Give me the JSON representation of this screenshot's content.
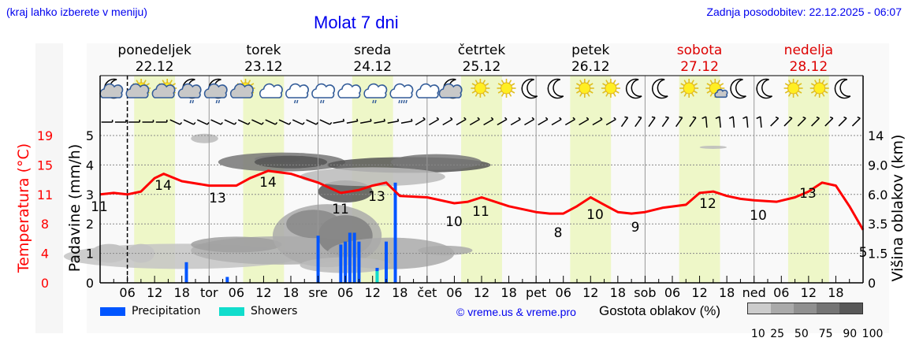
{
  "header": {
    "location_hint": "(kraj lahko izberete v meniju)",
    "title": "Molat 7 dni",
    "last_update": "Zadnja posodobitev: 22.12.2025 - 06:07"
  },
  "days": [
    {
      "name": "ponedeljek",
      "date": "22.12",
      "weekend": false
    },
    {
      "name": "torek",
      "date": "23.12",
      "weekend": false
    },
    {
      "name": "sreda",
      "date": "24.12",
      "weekend": false
    },
    {
      "name": "četrtek",
      "date": "25.12",
      "weekend": false
    },
    {
      "name": "petek",
      "date": "26.12",
      "weekend": false
    },
    {
      "name": "sobota",
      "date": "27.12",
      "weekend": true
    },
    {
      "name": "nedelja",
      "date": "28.12",
      "weekend": true
    }
  ],
  "x_ticks": [
    "06",
    "12",
    "18",
    "tor",
    "06",
    "12",
    "18",
    "sre",
    "06",
    "12",
    "18",
    "čet",
    "06",
    "12",
    "18",
    "pet",
    "06",
    "12",
    "18",
    "sob",
    "06",
    "12",
    "18",
    "ned",
    "06",
    "12",
    "18"
  ],
  "weather_icons": [
    "moon-cloud",
    "sun-cloud",
    "sun-cloud",
    "moon-cloud-rain",
    "moon-cloud-rain",
    "sun-cloud",
    "cloud",
    "cloud-rain",
    "cloud-rain",
    "cloud",
    "cloud-rain",
    "cloud-heavy-rain",
    "cloud",
    "moon-cloud",
    "sun",
    "sun",
    "moon",
    "moon",
    "sun",
    "sun",
    "moon",
    "moon",
    "sun",
    "sun-small-cloud",
    "moon",
    "moon",
    "sun",
    "sun",
    "moon"
  ],
  "axes": {
    "left_precip_label": "Padavine (mm/h)",
    "left_temp_label": "Temperatura (°C)",
    "right_label": "Višina oblakov (km)",
    "precip_ticks": [
      "0",
      "1",
      "2",
      "3",
      "4",
      "5"
    ],
    "temp_ticks": [
      "0",
      "4",
      "8",
      "11",
      "15",
      "19"
    ],
    "cloud_height_ticks": [
      "0",
      "1.5",
      "3.5",
      "6.0",
      "9.0",
      "14"
    ]
  },
  "legend": {
    "precipitation": "Precipitation",
    "showers": "Showers",
    "copyright": "© vreme.us & vreme.pro",
    "cloud_density": "Gostota oblakov (%)",
    "density_scale": [
      "10",
      "25",
      "50",
      "75",
      "90",
      "100"
    ]
  },
  "colors": {
    "temperature": "#ff0000",
    "precipitation": "#0055ff",
    "showers": "#11ddcc",
    "daylight": "#eef7c8",
    "title_blue": "#0000ee",
    "weekend_red": "#dd0000"
  },
  "chart_data": {
    "type": "line+bar+heatmap",
    "title": "Molat 7 dni",
    "xlabel": "",
    "ylabel_left": "Padavine (mm/h)",
    "ylabel_left2": "Temperatura (°C)",
    "ylabel_right": "Višina oblakov (km)",
    "ylim_precip": [
      0,
      5.5
    ],
    "grid": true,
    "temperature_labels": [
      {
        "hour": 0,
        "value": 11
      },
      {
        "hour": 12,
        "value": 14
      },
      {
        "hour": 26,
        "value": 13
      },
      {
        "hour": 37,
        "value": 14
      },
      {
        "hour": 54,
        "value": 11
      },
      {
        "hour": 62,
        "value": 13
      },
      {
        "hour": 78,
        "value": 10
      },
      {
        "hour": 85,
        "value": 11
      },
      {
        "hour": 101,
        "value": 8
      },
      {
        "hour": 109,
        "value": 10
      },
      {
        "hour": 118,
        "value": 9
      },
      {
        "hour": 133,
        "value": 12
      },
      {
        "hour": 146,
        "value": 10
      },
      {
        "hour": 157,
        "value": 13
      },
      {
        "hour": 168,
        "value": 5
      }
    ],
    "temperature_series_hours": [
      0,
      3,
      6,
      9,
      12,
      14,
      18,
      24,
      30,
      33,
      37,
      42,
      48,
      53,
      57,
      60,
      63,
      66,
      72,
      78,
      81,
      84,
      90,
      96,
      99,
      102,
      105,
      108,
      111,
      114,
      117,
      120,
      124,
      129,
      132,
      135,
      138,
      141,
      144,
      149,
      153,
      156,
      159,
      162,
      165,
      168
    ],
    "temperature_series_y": [
      3.0,
      3.05,
      3.0,
      3.1,
      3.55,
      3.7,
      3.45,
      3.3,
      3.3,
      3.55,
      3.8,
      3.7,
      3.4,
      3.05,
      3.15,
      3.3,
      3.4,
      2.95,
      2.9,
      2.7,
      2.75,
      2.9,
      2.6,
      2.4,
      2.35,
      2.35,
      2.6,
      2.9,
      2.65,
      2.4,
      2.35,
      2.4,
      2.55,
      2.65,
      3.05,
      3.1,
      2.95,
      2.85,
      2.8,
      2.75,
      2.9,
      3.1,
      3.4,
      3.3,
      2.6,
      1.8
    ],
    "precipitation": [
      {
        "hour": 19,
        "mm": 0.7
      },
      {
        "hour": 28,
        "mm": 0.2
      },
      {
        "hour": 48,
        "mm": 1.6
      },
      {
        "hour": 53,
        "mm": 1.3
      },
      {
        "hour": 54,
        "mm": 1.4
      },
      {
        "hour": 55,
        "mm": 1.7
      },
      {
        "hour": 56,
        "mm": 1.7
      },
      {
        "hour": 57,
        "mm": 1.4
      },
      {
        "hour": 61,
        "mm": 0.5
      },
      {
        "hour": 63,
        "mm": 1.4
      },
      {
        "hour": 65,
        "mm": 3.4
      }
    ],
    "showers": [
      {
        "hour": 61,
        "mm": 0.4
      }
    ],
    "cloud_density_scale_pct": [
      10,
      25,
      50,
      75,
      90,
      100
    ]
  }
}
